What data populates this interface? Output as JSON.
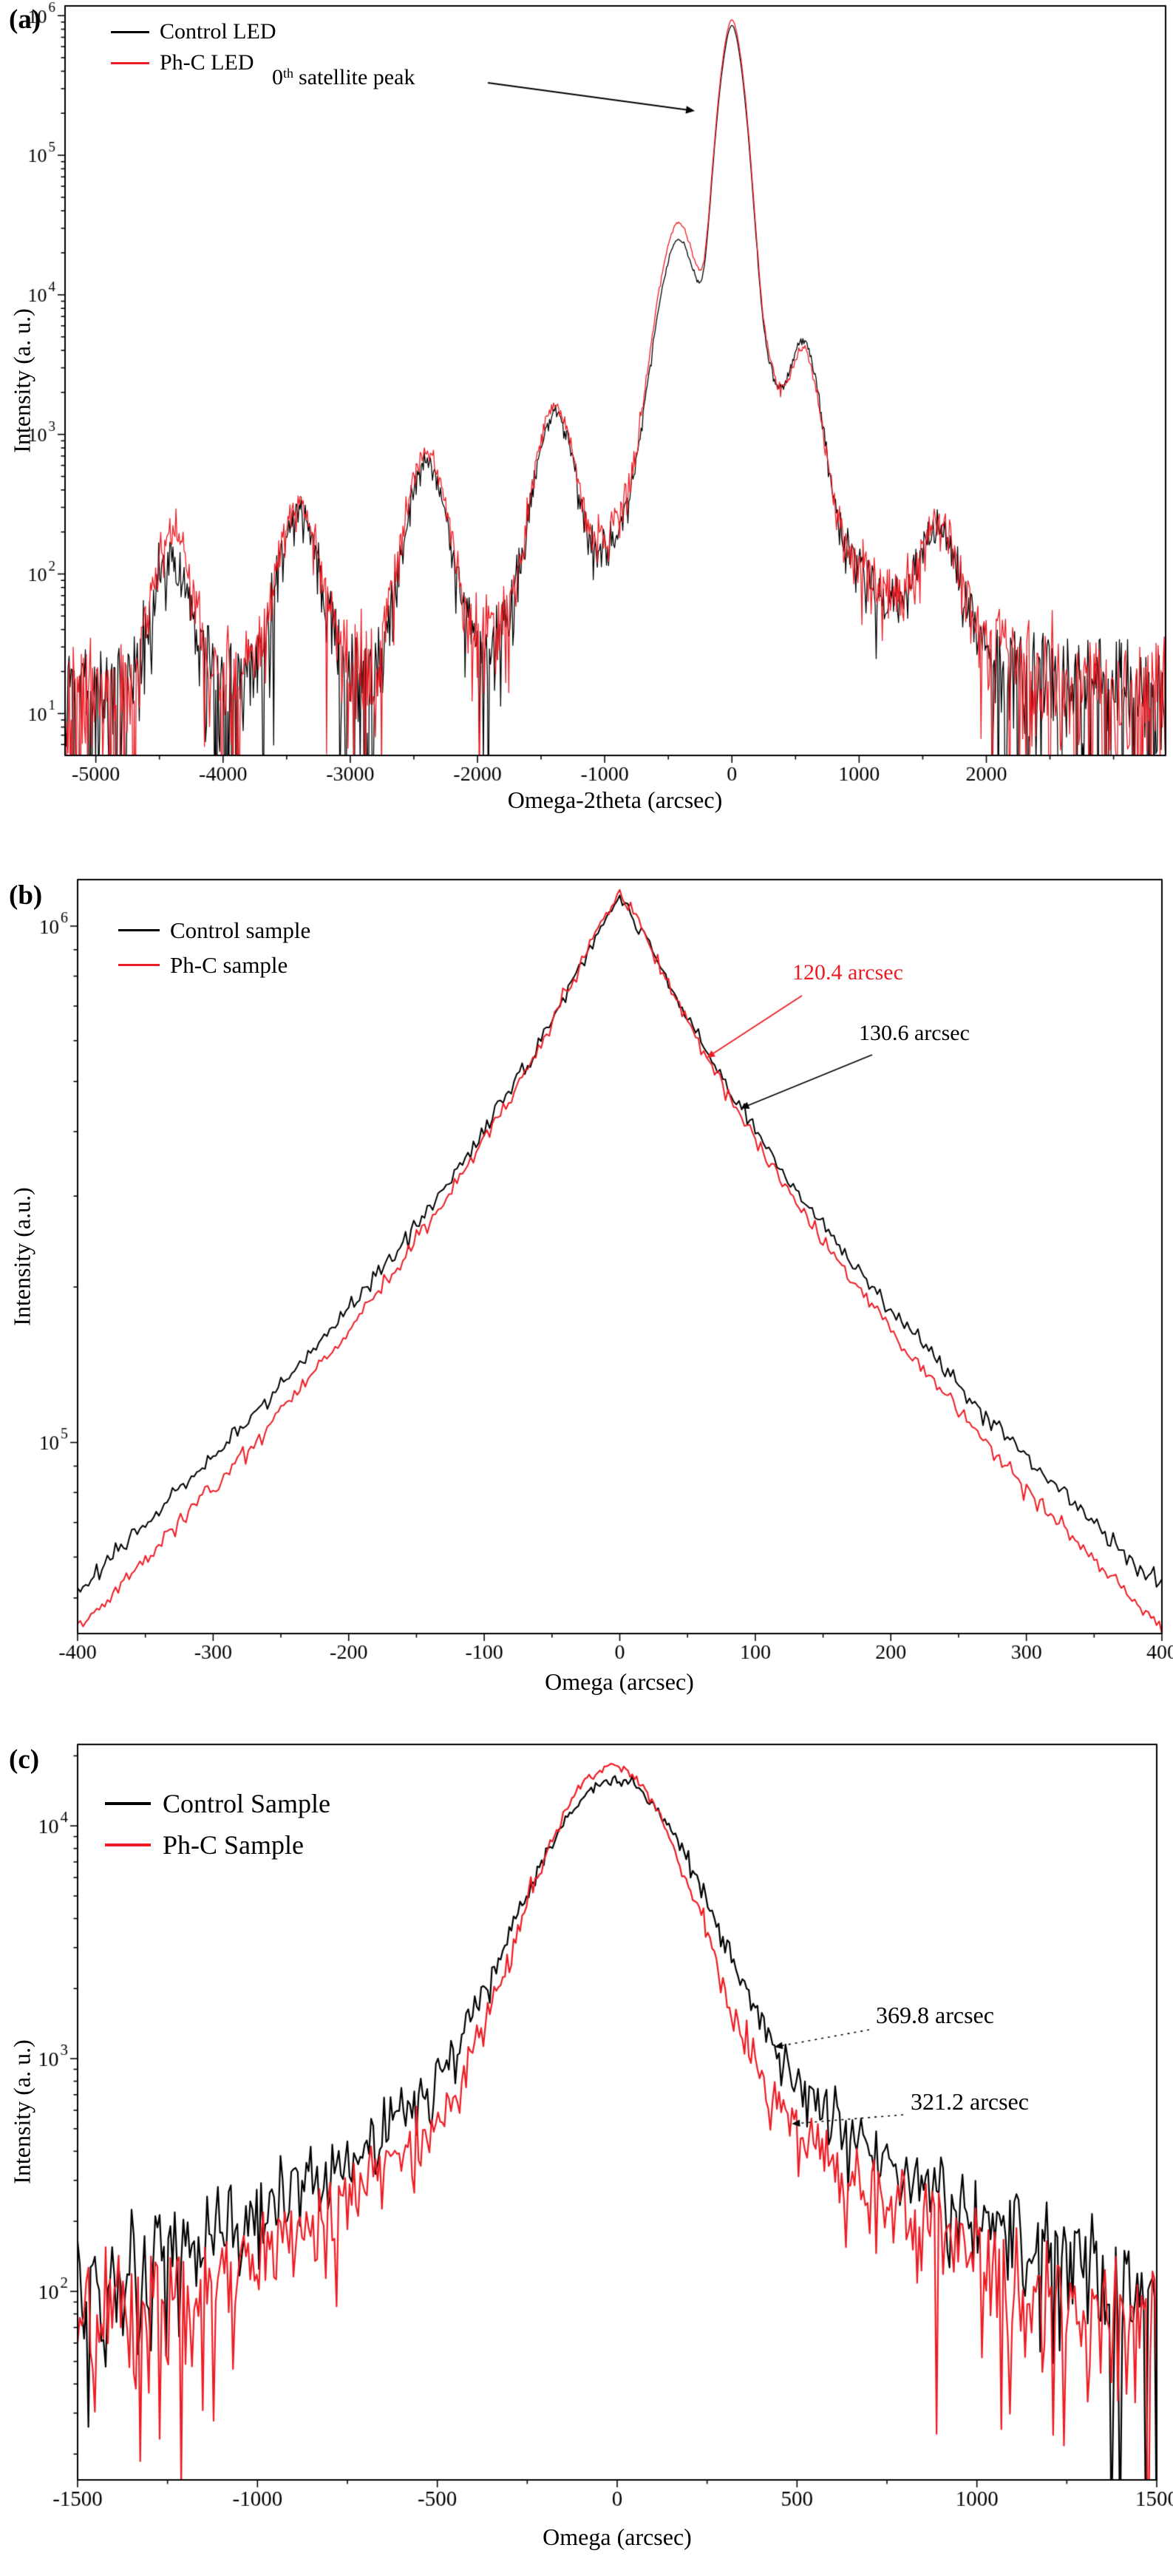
{
  "chart_data": [
    {
      "panel_label": "(a)",
      "type": "line",
      "y_scale": "log",
      "xlabel": "Omega-2theta (arcsec)",
      "ylabel": "Intensity (a. u.)",
      "xlim": [
        -5242,
        3409
      ],
      "ylog_lim": [
        0.7,
        6.07
      ],
      "x_ticks": [
        -5000,
        -4000,
        -3000,
        -2000,
        -1000,
        0,
        1000,
        2000
      ],
      "x_minor_step": 500,
      "y_ticks_exp": [
        1,
        2,
        3,
        4,
        5,
        6
      ],
      "legend": [
        {
          "label": "Control LED",
          "color": "#000000"
        },
        {
          "label": "Ph-C LED",
          "color": "#ed1c24"
        }
      ],
      "annotation": {
        "prefix": "0",
        "sup": "th",
        "suffix": "satellite peak"
      },
      "series": [
        {
          "name": "Control LED",
          "color": "#000000",
          "baseline_log": 1.05,
          "noise_seed": 101,
          "peaks": [
            {
              "center": -4400,
              "log_height": 2.1,
              "width": 120
            },
            {
              "center": -3400,
              "log_height": 2.42,
              "width": 120
            },
            {
              "center": -2400,
              "log_height": 2.78,
              "width": 120
            },
            {
              "center": -1390,
              "log_height": 3.15,
              "width": 115
            },
            {
              "center": -420,
              "log_height": 4.38,
              "width": 110
            },
            {
              "center": 0,
              "log_height": 5.93,
              "width": 70
            },
            {
              "center": 560,
              "log_height": 3.62,
              "width": 95
            },
            {
              "center": 1620,
              "log_height": 2.25,
              "width": 135
            }
          ]
        },
        {
          "name": "Ph-C LED",
          "color": "#ed1c24",
          "baseline_log": 1.05,
          "noise_seed": 202,
          "peaks": [
            {
              "center": -4400,
              "log_height": 2.26,
              "width": 120
            },
            {
              "center": -3400,
              "log_height": 2.5,
              "width": 120
            },
            {
              "center": -2400,
              "log_height": 2.86,
              "width": 120
            },
            {
              "center": -1390,
              "log_height": 3.2,
              "width": 115
            },
            {
              "center": -420,
              "log_height": 4.5,
              "width": 110
            },
            {
              "center": 0,
              "log_height": 5.97,
              "width": 70
            },
            {
              "center": 560,
              "log_height": 3.55,
              "width": 95
            },
            {
              "center": 1620,
              "log_height": 2.3,
              "width": 135
            }
          ]
        }
      ]
    },
    {
      "panel_label": "(b)",
      "type": "line",
      "y_scale": "log",
      "xlabel": "Omega (arcsec)",
      "ylabel": "Intensity (a.u.)",
      "xlim": [
        -400,
        400
      ],
      "ylog_lim": [
        4.63,
        6.09
      ],
      "x_ticks": [
        -400,
        -300,
        -200,
        -100,
        0,
        100,
        200,
        300,
        400
      ],
      "x_minor_step": 50,
      "y_ticks_exp": [
        5,
        6
      ],
      "legend": [
        {
          "label": "Control sample",
          "color": "#000000"
        },
        {
          "label": "Ph-C sample",
          "color": "#ed1c24"
        }
      ],
      "annotations": [
        {
          "text": "120.4 arcsec",
          "color": "#ed1c24"
        },
        {
          "text": "130.6 arcsec",
          "color": "#000000"
        }
      ],
      "series": [
        {
          "name": "Control sample",
          "color": "#000000",
          "fwhm_arcsec": 130.6,
          "noise_seed": 303,
          "profile": {
            "peak_log": 6.05,
            "shape_s": 243.6,
            "shape_p": 0.682,
            "core_r": 30
          }
        },
        {
          "name": "Ph-C sample",
          "color": "#ed1c24",
          "fwhm_arcsec": 120.4,
          "noise_seed": 404,
          "profile": {
            "peak_log": 6.06,
            "shape_s": 222.0,
            "shape_p": 0.682,
            "core_r": 30
          }
        }
      ]
    },
    {
      "panel_label": "(c)",
      "type": "line",
      "y_scale": "log",
      "xlabel": "Omega (arcsec)",
      "ylabel": "Intensity (a. u.)",
      "xlim": [
        -1500,
        1500
      ],
      "ylog_lim": [
        1.19,
        4.35
      ],
      "x_ticks": [
        -1500,
        -1000,
        -500,
        0,
        500,
        1000,
        1500
      ],
      "x_minor_step": 250,
      "y_ticks_exp": [
        2,
        3,
        4
      ],
      "legend": [
        {
          "label": "Control Sample",
          "color": "#000000"
        },
        {
          "label": "Ph-C Sample",
          "color": "#ed1c24"
        }
      ],
      "annotations": [
        {
          "text": "369.8 arcsec",
          "color": "#000000"
        },
        {
          "text": "321.2 arcsec",
          "color": "#000000"
        }
      ],
      "series": [
        {
          "name": "Control Sample",
          "color": "#000000",
          "fwhm_arcsec": 369.8,
          "noise_seed": 505,
          "voigt": {
            "peak_log": 4.2,
            "eta": 0.4,
            "center": -5
          }
        },
        {
          "name": "Ph-C Sample",
          "color": "#ed1c24",
          "fwhm_arcsec": 321.2,
          "noise_seed": 606,
          "voigt": {
            "peak_log": 4.26,
            "eta": 0.3,
            "center": -15
          }
        }
      ]
    }
  ]
}
